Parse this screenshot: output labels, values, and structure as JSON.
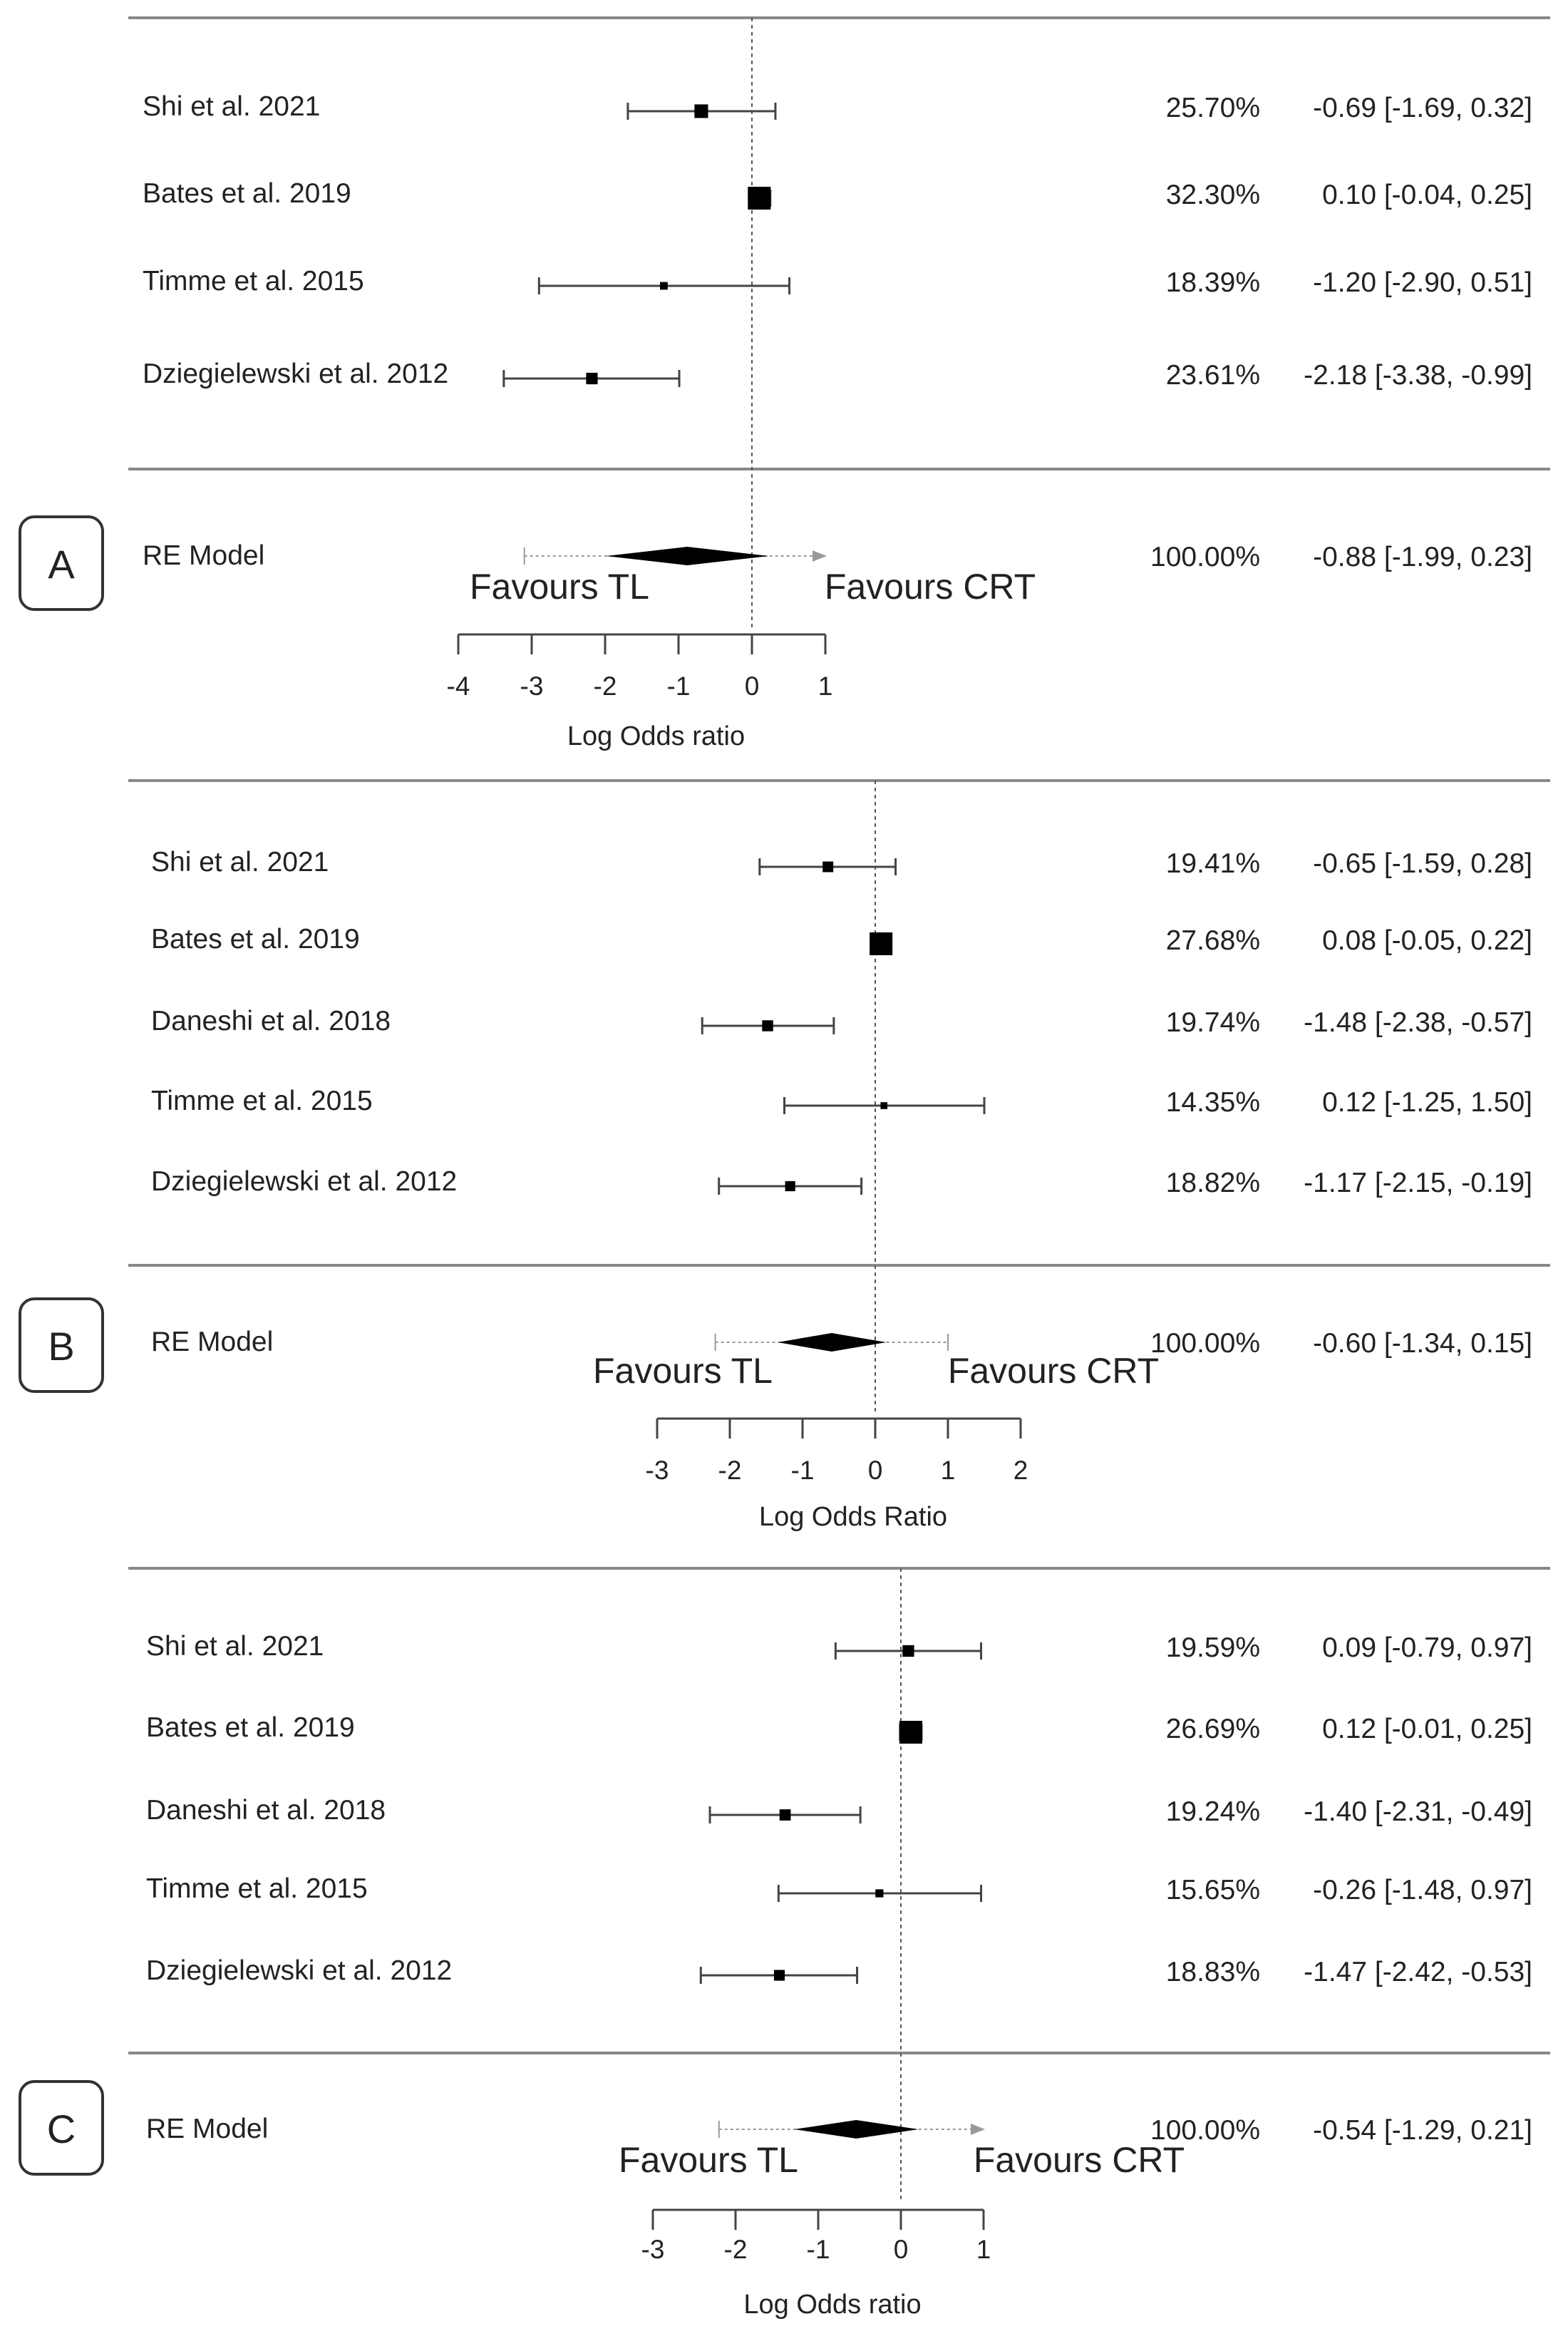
{
  "chart_data": [
    {
      "type": "forest",
      "panel_label": "A",
      "xlabel": "Log Odds ratio",
      "favours_left": "Favours TL",
      "favours_right": "Favours CRT",
      "xlim": [
        -4,
        1
      ],
      "ticks": [
        "-4",
        "-3",
        "-2",
        "-1",
        "0",
        "1"
      ],
      "studies": [
        {
          "name": "Shi et al.  2021",
          "estimate": -0.69,
          "lower": -1.69,
          "upper": 0.32,
          "weight": 25.7,
          "weight_label": "25.70%",
          "ci_label": "-0.69 [-1.69,  0.32]"
        },
        {
          "name": "Bates et al.  2019",
          "estimate": 0.1,
          "lower": -0.04,
          "upper": 0.25,
          "weight": 32.3,
          "weight_label": "32.30%",
          "ci_label": "0.10 [-0.04,  0.25]"
        },
        {
          "name": "Timme et al. 2015",
          "estimate": -1.2,
          "lower": -2.9,
          "upper": 0.51,
          "weight": 18.39,
          "weight_label": "18.39%",
          "ci_label": "-1.20 [-2.90,  0.51]"
        },
        {
          "name": "Dziegielewski et al. 2012",
          "estimate": -2.18,
          "lower": -3.38,
          "upper": -0.99,
          "weight": 23.61,
          "weight_label": "23.61%",
          "ci_label": "-2.18 [-3.38, -0.99]"
        }
      ],
      "pooled": {
        "name": "RE Model",
        "estimate": -0.88,
        "lower": -1.99,
        "upper": 0.23,
        "pi_lower": -3.1,
        "pi_upper": 1.0,
        "pi_arrow": true,
        "weight_label": "100.00%",
        "ci_label": "-0.88 [-1.99,  0.23]"
      }
    },
    {
      "type": "forest",
      "panel_label": "B",
      "xlabel": "Log Odds Ratio",
      "favours_left": "Favours TL",
      "favours_right": "Favours CRT",
      "xlim": [
        -3,
        2
      ],
      "ticks": [
        "-3",
        "-2",
        "-1",
        "0",
        "1",
        "2"
      ],
      "studies": [
        {
          "name": "Shi et al. 2021",
          "estimate": -0.65,
          "lower": -1.59,
          "upper": 0.28,
          "weight": 19.41,
          "weight_label": "19.41%",
          "ci_label": "-0.65 [-1.59,  0.28]"
        },
        {
          "name": "Bates et al. 2019",
          "estimate": 0.08,
          "lower": -0.05,
          "upper": 0.22,
          "weight": 27.68,
          "weight_label": "27.68%",
          "ci_label": "0.08 [-0.05,  0.22]"
        },
        {
          "name": "Daneshi et al.  2018",
          "estimate": -1.48,
          "lower": -2.38,
          "upper": -0.57,
          "weight": 19.74,
          "weight_label": "19.74%",
          "ci_label": "-1.48 [-2.38, -0.57]"
        },
        {
          "name": "Timme et al. 2015",
          "estimate": 0.12,
          "lower": -1.25,
          "upper": 1.5,
          "weight": 14.35,
          "weight_label": "14.35%",
          "ci_label": "0.12 [-1.25,  1.50]"
        },
        {
          "name": "Dziegielewski et al. 2012",
          "estimate": -1.17,
          "lower": -2.15,
          "upper": -0.19,
          "weight": 18.82,
          "weight_label": "18.82%",
          "ci_label": "-1.17 [-2.15, -0.19]"
        }
      ],
      "pooled": {
        "name": "RE Model",
        "estimate": -0.6,
        "lower": -1.34,
        "upper": 0.15,
        "pi_lower": -2.2,
        "pi_upper": 1.0,
        "pi_arrow": false,
        "weight_label": "100.00%",
        "ci_label": "-0.60 [-1.34,  0.15]"
      }
    },
    {
      "type": "forest",
      "panel_label": "C",
      "xlabel": "Log Odds ratio",
      "favours_left": "Favours TL",
      "favours_right": "Favours CRT",
      "xlim": [
        -3,
        1
      ],
      "ticks": [
        "-3",
        "-2",
        "-1",
        "0",
        "1"
      ],
      "studies": [
        {
          "name": "Shi et al.  2021",
          "estimate": 0.09,
          "lower": -0.79,
          "upper": 0.97,
          "weight": 19.59,
          "weight_label": "19.59%",
          "ci_label": "0.09 [-0.79,  0.97]"
        },
        {
          "name": "Bates et al. 2019",
          "estimate": 0.12,
          "lower": -0.01,
          "upper": 0.25,
          "weight": 26.69,
          "weight_label": "26.69%",
          "ci_label": "0.12 [-0.01,  0.25]"
        },
        {
          "name": "Daneshi et al. 2018",
          "estimate": -1.4,
          "lower": -2.31,
          "upper": -0.49,
          "weight": 19.24,
          "weight_label": "19.24%",
          "ci_label": "-1.40 [-2.31, -0.49]"
        },
        {
          "name": "Timme et al. 2015",
          "estimate": -0.26,
          "lower": -1.48,
          "upper": 0.97,
          "weight": 15.65,
          "weight_label": "15.65%",
          "ci_label": "-0.26 [-1.48,  0.97]"
        },
        {
          "name": "Dziegielewski et al. 2012",
          "estimate": -1.47,
          "lower": -2.42,
          "upper": -0.53,
          "weight": 18.83,
          "weight_label": "18.83%",
          "ci_label": "-1.47 [-2.42, -0.53]"
        }
      ],
      "pooled": {
        "name": "RE Model",
        "estimate": -0.54,
        "lower": -1.29,
        "upper": 0.21,
        "pi_lower": -2.2,
        "pi_upper": 1.0,
        "pi_arrow": true,
        "weight_label": "100.00%",
        "ci_label": "-0.54 [-1.29,  0.21]"
      }
    }
  ]
}
